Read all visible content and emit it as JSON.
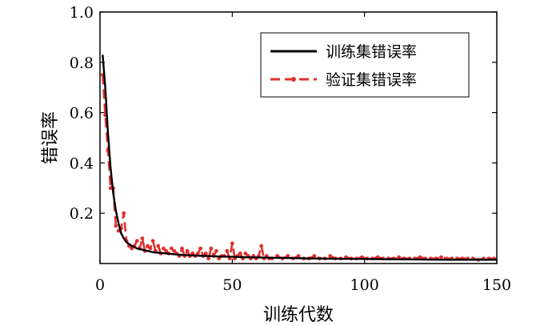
{
  "chart_data": {
    "type": "line",
    "title": "",
    "xlabel": "训练代数",
    "ylabel": "错误率",
    "xlim": [
      0,
      150
    ],
    "ylim": [
      0,
      1.0
    ],
    "xticks": [
      0,
      50,
      100,
      150
    ],
    "xtick_labels": [
      "0",
      "50",
      "100",
      "150"
    ],
    "yticks": [
      0.2,
      0.4,
      0.6,
      0.8,
      1.0
    ],
    "ytick_labels": [
      "0.2",
      "0.4",
      "0.6",
      "0.8",
      "1.0"
    ],
    "grid": false,
    "legend_position": "top-right",
    "series": [
      {
        "name": "训练集错误率",
        "color": "#000000",
        "style": "solid",
        "x": [
          1,
          2,
          3,
          4,
          5,
          6,
          7,
          8,
          9,
          10,
          12,
          14,
          16,
          18,
          20,
          25,
          30,
          35,
          40,
          45,
          50,
          55,
          60,
          65,
          70,
          80,
          90,
          100,
          110,
          120,
          130,
          140,
          150
        ],
        "y": [
          0.83,
          0.7,
          0.52,
          0.38,
          0.28,
          0.21,
          0.16,
          0.12,
          0.1,
          0.085,
          0.07,
          0.06,
          0.055,
          0.05,
          0.045,
          0.04,
          0.035,
          0.032,
          0.03,
          0.028,
          0.027,
          0.025,
          0.024,
          0.023,
          0.022,
          0.02,
          0.019,
          0.018,
          0.017,
          0.016,
          0.015,
          0.015,
          0.015
        ]
      },
      {
        "name": "验证集错误率",
        "color": "#e03030",
        "style": "dashed-dot",
        "x": [
          1,
          2,
          3,
          4,
          5,
          6,
          7,
          8,
          9,
          10,
          11,
          12,
          13,
          14,
          15,
          16,
          17,
          18,
          19,
          20,
          21,
          22,
          23,
          24,
          25,
          26,
          27,
          28,
          29,
          30,
          31,
          32,
          33,
          34,
          35,
          36,
          37,
          38,
          39,
          40,
          41,
          42,
          43,
          44,
          45,
          46,
          47,
          48,
          49,
          50,
          51,
          52,
          53,
          54,
          55,
          56,
          57,
          58,
          59,
          60,
          61,
          62,
          63,
          64,
          65,
          67,
          69,
          71,
          73,
          75,
          77,
          79,
          81,
          83,
          85,
          87,
          89,
          91,
          93,
          95,
          97,
          99,
          101,
          103,
          105,
          107,
          109,
          111,
          113,
          115,
          117,
          119,
          121,
          123,
          125,
          127,
          129,
          131,
          133,
          135,
          137,
          139,
          141,
          143,
          145,
          147,
          149
        ],
        "y": [
          0.75,
          0.59,
          0.45,
          0.3,
          0.3,
          0.15,
          0.13,
          0.14,
          0.2,
          0.09,
          0.07,
          0.06,
          0.07,
          0.09,
          0.06,
          0.1,
          0.05,
          0.07,
          0.06,
          0.09,
          0.05,
          0.07,
          0.04,
          0.06,
          0.05,
          0.04,
          0.06,
          0.05,
          0.04,
          0.03,
          0.06,
          0.03,
          0.05,
          0.03,
          0.04,
          0.03,
          0.04,
          0.06,
          0.03,
          0.04,
          0.02,
          0.06,
          0.03,
          0.05,
          0.02,
          0.03,
          0.03,
          0.05,
          0.02,
          0.08,
          0.02,
          0.03,
          0.04,
          0.02,
          0.04,
          0.03,
          0.02,
          0.03,
          0.02,
          0.03,
          0.07,
          0.02,
          0.03,
          0.02,
          0.02,
          0.03,
          0.02,
          0.03,
          0.02,
          0.03,
          0.02,
          0.02,
          0.03,
          0.02,
          0.02,
          0.03,
          0.02,
          0.02,
          0.025,
          0.02,
          0.02,
          0.025,
          0.02,
          0.02,
          0.025,
          0.02,
          0.02,
          0.02,
          0.025,
          0.02,
          0.02,
          0.02,
          0.025,
          0.02,
          0.02,
          0.02,
          0.025,
          0.02,
          0.02,
          0.02,
          0.02,
          0.02,
          0.02,
          0.015,
          0.02,
          0.02,
          0.02
        ]
      }
    ]
  }
}
